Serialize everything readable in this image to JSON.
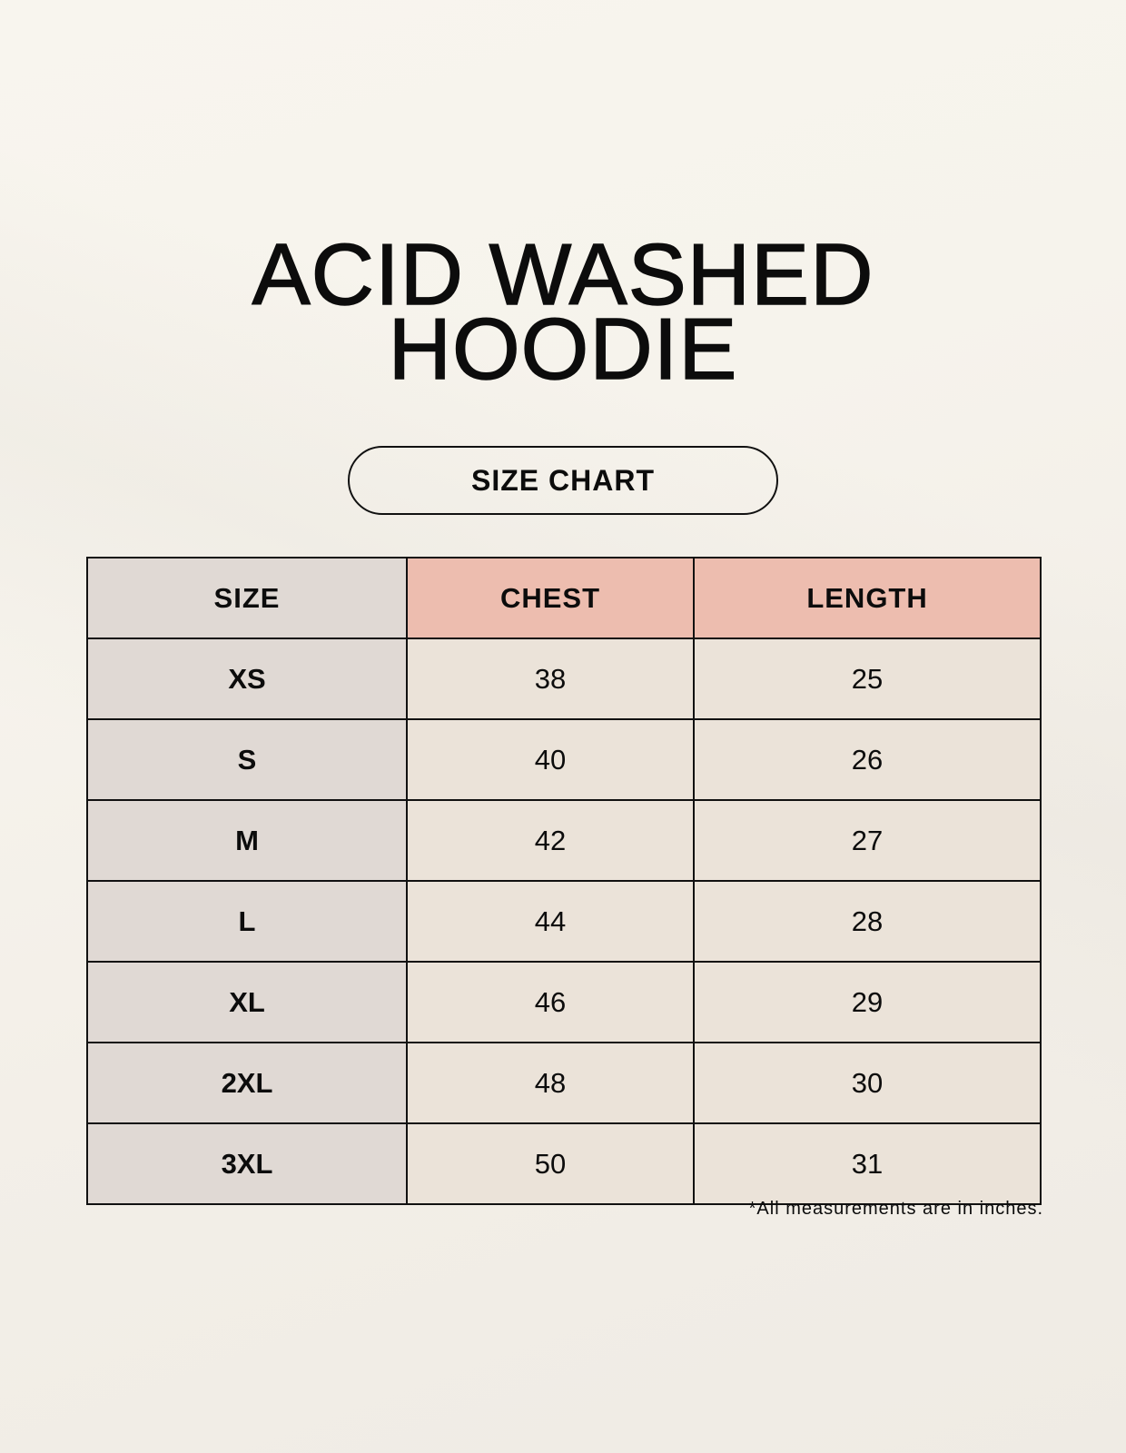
{
  "title_line1": "ACID WASHED",
  "title_line2": "HOODIE",
  "badge": "SIZE CHART",
  "table": {
    "headers": [
      "SIZE",
      "CHEST",
      "LENGTH"
    ],
    "rows": [
      [
        "XS",
        "38",
        "25"
      ],
      [
        "S",
        "40",
        "26"
      ],
      [
        "M",
        "42",
        "27"
      ],
      [
        "L",
        "44",
        "28"
      ],
      [
        "XL",
        "46",
        "29"
      ],
      [
        "2XL",
        "48",
        "30"
      ],
      [
        "3XL",
        "50",
        "31"
      ]
    ]
  },
  "footnote": "*All measurements are in inches.",
  "colors": {
    "header_accent": "#edbdaf",
    "size_column": "#e0d9d4",
    "cell": "#ebe3d9"
  }
}
